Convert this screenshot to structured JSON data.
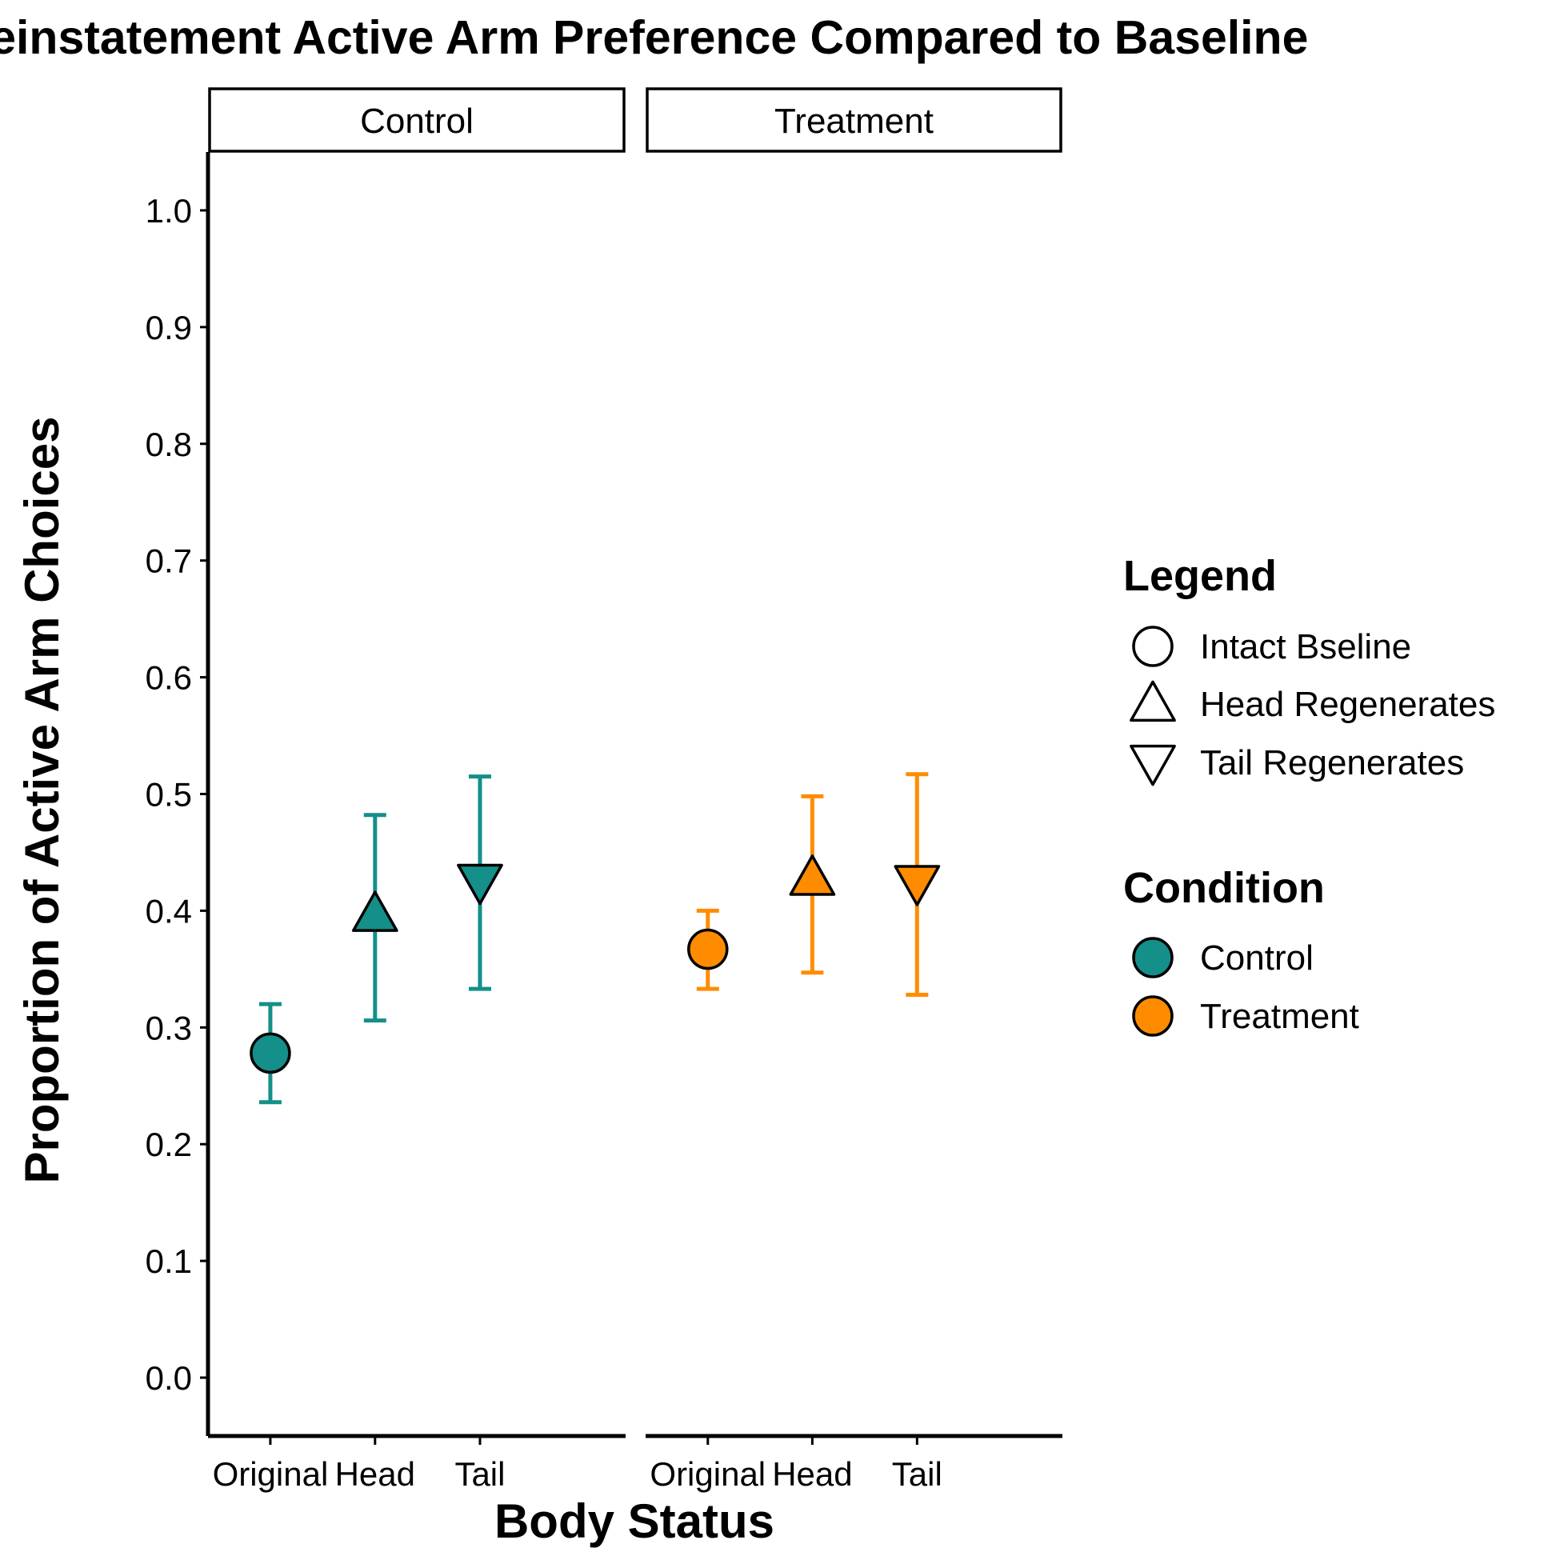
{
  "chart_data": {
    "type": "scatter",
    "title": "Reinstatement Active Arm Preference Compared to Baseline",
    "xlabel": "Body Status",
    "ylabel": "Proportion of Active Arm Choices",
    "ylim": [
      -0.05,
      1.05
    ],
    "y_ticks": [
      "0.0",
      "0.1",
      "0.2",
      "0.3",
      "0.4",
      "0.5",
      "0.6",
      "0.7",
      "0.8",
      "0.9",
      "1.0"
    ],
    "categories": [
      "Original",
      "Head",
      "Tail"
    ],
    "facets": [
      {
        "label": "Control",
        "color": "#148F8A",
        "points": [
          {
            "category": "Original",
            "shape": "circle",
            "value": 0.278,
            "lower": 0.236,
            "upper": 0.32
          },
          {
            "category": "Head",
            "shape": "triangle-up",
            "value": 0.397,
            "lower": 0.306,
            "upper": 0.482
          },
          {
            "category": "Tail",
            "shape": "triangle-down",
            "value": 0.425,
            "lower": 0.333,
            "upper": 0.515
          }
        ]
      },
      {
        "label": "Treatment",
        "color": "#FF8C00",
        "points": [
          {
            "category": "Original",
            "shape": "circle",
            "value": 0.367,
            "lower": 0.333,
            "upper": 0.4
          },
          {
            "category": "Head",
            "shape": "triangle-up",
            "value": 0.428,
            "lower": 0.347,
            "upper": 0.498
          },
          {
            "category": "Tail",
            "shape": "triangle-down",
            "value": 0.424,
            "lower": 0.328,
            "upper": 0.517
          }
        ]
      }
    ],
    "grid": false,
    "legend": {
      "position": "right",
      "shape_title": "Legend",
      "shape_items": [
        {
          "label": "Intact Bseline",
          "shape": "circle"
        },
        {
          "label": "Head Regenerates",
          "shape": "triangle-up"
        },
        {
          "label": "Tail Regenerates",
          "shape": "triangle-down"
        }
      ],
      "color_title": "Condition",
      "color_items": [
        {
          "label": "Control",
          "color": "#148F8A"
        },
        {
          "label": "Treatment",
          "color": "#FF8C00"
        }
      ]
    }
  }
}
